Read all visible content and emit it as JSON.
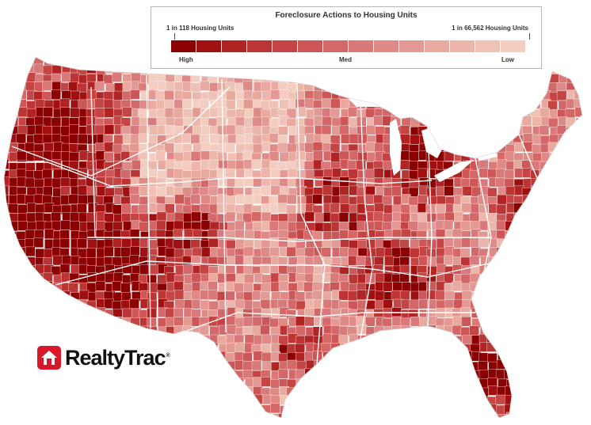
{
  "legend": {
    "title": "Foreclosure Actions to Housing Units",
    "high_end_label": "1 in 118 Housing Units",
    "low_end_label": "1 in 66,562 Housing Units",
    "categories": {
      "high": "High",
      "med": "Med",
      "low": "Low"
    },
    "colors": [
      "#8b0000",
      "#a01011",
      "#b02424",
      "#bc3535",
      "#c54545",
      "#cd5757",
      "#d46868",
      "#da7979",
      "#df8a87",
      "#e49a94",
      "#e8a99f",
      "#ecb6aa",
      "#efc2b5",
      "#f2cdc0"
    ]
  },
  "logo": {
    "name": "RealtyTrac",
    "registered": "®"
  },
  "colors": {
    "high": "#8b0000",
    "low": "#f2cdc0",
    "county_border": "#ffffff",
    "state_border": "#ffffff",
    "logo_red": "#d6182a"
  }
}
